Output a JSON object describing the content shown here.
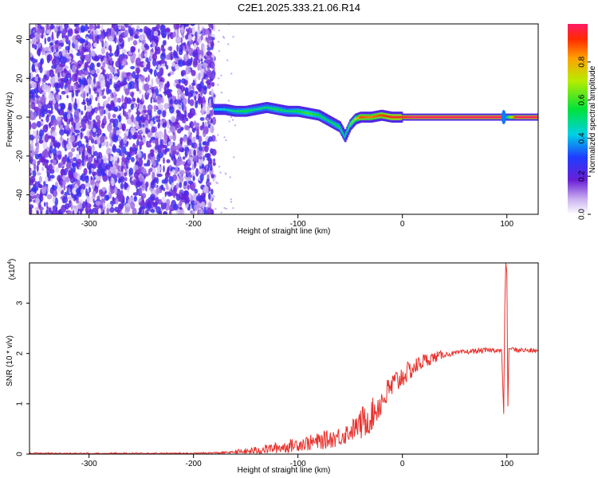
{
  "title": "C2E1.2025.333.21.06.R14",
  "chart_data": [
    {
      "type": "heatmap",
      "xlabel": "Height of straight line (km)",
      "ylabel": "Frequency (Hz)",
      "xlim": [
        -357,
        130
      ],
      "ylim": [
        -50,
        48
      ],
      "x_ticks": [
        -300,
        -200,
        -100,
        0,
        100
      ],
      "y_ticks": [
        -40,
        -20,
        0,
        20,
        40
      ],
      "colorbar": {
        "label": "Normalized spectral amplitude",
        "range": [
          0,
          1
        ],
        "ticks": [
          0.0,
          0.2,
          0.4,
          0.6,
          0.8
        ],
        "tick_labels": [
          "0.0",
          "0.2",
          "0.4",
          "0.6",
          "0.8"
        ]
      },
      "noise_region_x": [
        -357,
        -180
      ],
      "ridge": {
        "x": [
          -180,
          -170,
          -160,
          -150,
          -140,
          -130,
          -120,
          -110,
          -100,
          -90,
          -80,
          -70,
          -60,
          -55,
          -50,
          -45,
          -40,
          -30,
          -20,
          -10,
          0,
          10,
          20,
          40,
          60,
          80,
          95,
          100,
          110,
          130
        ],
        "y": [
          4,
          4,
          3,
          3,
          4,
          5,
          4,
          3,
          3,
          2,
          1,
          -2,
          -5,
          -10,
          -4,
          -1,
          0,
          0,
          1,
          0,
          0,
          0,
          0,
          0,
          0,
          0,
          0,
          0,
          0,
          0
        ],
        "amplitude": [
          0.4,
          0.45,
          0.5,
          0.55,
          0.5,
          0.5,
          0.55,
          0.5,
          0.55,
          0.6,
          0.55,
          0.5,
          0.55,
          0.5,
          0.6,
          0.7,
          0.9,
          0.85,
          0.9,
          0.95,
          0.95,
          1.0,
          1.0,
          1.0,
          1.0,
          1.0,
          1.0,
          0.5,
          1.0,
          1.0
        ]
      }
    },
    {
      "type": "line",
      "xlabel": "Height of straight line (km)",
      "ylabel": "SNR (10 * v/v)",
      "multiplier": "(x10",
      "multiplier_exp": "4",
      "xlim": [
        -357,
        130
      ],
      "ylim": [
        0,
        3.8
      ],
      "x_ticks": [
        -300,
        -200,
        -100,
        0,
        100
      ],
      "y_ticks": [
        0,
        1,
        2,
        3
      ],
      "line_color": "#e8312c",
      "series": [
        {
          "x": [
            -357,
            -300,
            -250,
            -200,
            -170,
            -150,
            -130,
            -110,
            -100,
            -90,
            -80,
            -70,
            -60,
            -50,
            -40,
            -30,
            -25,
            -20,
            -15,
            -10,
            -5,
            0,
            10,
            20,
            30,
            40,
            50,
            60,
            70,
            80,
            90,
            95,
            97,
            98,
            99,
            100,
            101,
            102,
            105,
            110,
            120,
            130
          ],
          "y": [
            0.01,
            0.01,
            0.01,
            0.01,
            0.03,
            0.05,
            0.1,
            0.15,
            0.2,
            0.22,
            0.25,
            0.3,
            0.35,
            0.45,
            0.6,
            0.75,
            0.9,
            1.05,
            1.2,
            1.35,
            1.45,
            1.55,
            1.7,
            1.85,
            1.92,
            1.98,
            2.0,
            2.03,
            2.05,
            2.06,
            2.07,
            2.05,
            0.8,
            2.9,
            3.8,
            3.6,
            0.95,
            2.1,
            2.08,
            2.07,
            2.06,
            2.05
          ]
        }
      ]
    }
  ]
}
